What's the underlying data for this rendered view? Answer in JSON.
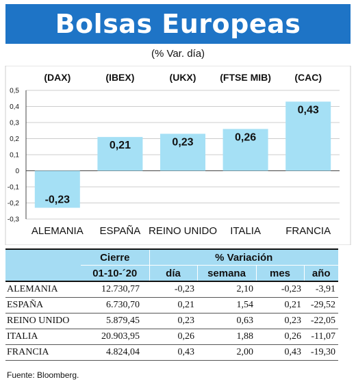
{
  "title": "Bolsas Europeas",
  "subtitle": "(% Var. día)",
  "colors": {
    "banner": "#1e74c6",
    "bar": "#a5e0f5",
    "table_header": "#a5dcf3"
  },
  "chart_data": {
    "type": "bar",
    "categories": [
      "ALEMANIA",
      "ESPAÑA",
      "REINO UNIDO",
      "ITALIA",
      "FRANCIA"
    ],
    "index_names": [
      "(DAX)",
      "(IBEX)",
      "(UKX)",
      "(FTSE MIB)",
      "(CAC)"
    ],
    "values": [
      -0.23,
      0.21,
      0.23,
      0.26,
      0.43
    ],
    "value_labels": [
      "-0,23",
      "0,21",
      "0,23",
      "0,26",
      "0,43"
    ],
    "yticks": [
      "0,5",
      "0,4",
      "0,3",
      "0,2",
      "0,1",
      "0",
      "-0,1",
      "-0,2",
      "-0,3"
    ],
    "ytick_values": [
      0.5,
      0.4,
      0.3,
      0.2,
      0.1,
      0,
      -0.1,
      -0.2,
      -0.3
    ],
    "ylim": [
      -0.3,
      0.5
    ],
    "grid": true
  },
  "table": {
    "header_cierre": "Cierre",
    "header_variacion": "% Variación",
    "date": "01-10-´20",
    "cols": [
      "día",
      "semana",
      "mes",
      "año"
    ],
    "rows": [
      {
        "name": "ALEMANIA",
        "cierre": "12.730,77",
        "dia": "-0,23",
        "semana": "2,10",
        "mes": "-0,23",
        "anio": "-3,91"
      },
      {
        "name": "ESPAÑA",
        "cierre": "6.730,70",
        "dia": "0,21",
        "semana": "1,54",
        "mes": "0,21",
        "anio": "-29,52"
      },
      {
        "name": "REINO UNIDO",
        "cierre": "5.879,45",
        "dia": "0,23",
        "semana": "0,63",
        "mes": "0,23",
        "anio": "-22,05"
      },
      {
        "name": "ITALIA",
        "cierre": "20.903,95",
        "dia": "0,26",
        "semana": "1,88",
        "mes": "0,26",
        "anio": "-11,07"
      },
      {
        "name": "FRANCIA",
        "cierre": "4.824,04",
        "dia": "0,43",
        "semana": "2,00",
        "mes": "0,43",
        "anio": "-19,30"
      }
    ]
  },
  "source": "Fuente: Bloomberg."
}
